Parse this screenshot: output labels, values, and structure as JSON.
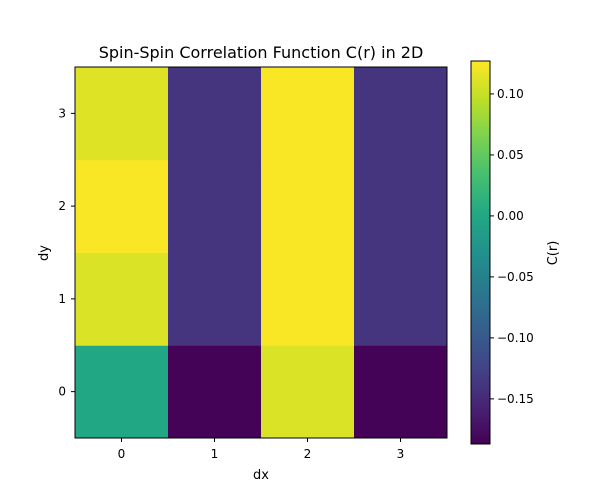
{
  "chart_data": {
    "type": "heatmap",
    "title": "Spin-Spin Correlation Function C(r) in 2D",
    "xlabel": "dx",
    "ylabel": "dy",
    "x_ticks": [
      "0",
      "1",
      "2",
      "3"
    ],
    "y_ticks": [
      "0",
      "1",
      "2",
      "3"
    ],
    "values": [
      [
        0.0,
        -0.185,
        0.11,
        -0.185
      ],
      [
        0.11,
        -0.14,
        0.125,
        -0.14
      ],
      [
        0.125,
        -0.14,
        0.125,
        -0.14
      ],
      [
        0.112,
        -0.14,
        0.125,
        -0.14
      ]
    ],
    "colorbar": {
      "label": "C(r)",
      "min": -0.187,
      "max": 0.127,
      "ticks": [
        0.1,
        0.05,
        0.0,
        -0.05,
        -0.1,
        -0.15
      ],
      "tick_labels": [
        "0.10",
        "0.05",
        "0.00",
        "−0.05",
        "−0.10",
        "−0.15"
      ],
      "colormap": "viridis"
    }
  }
}
